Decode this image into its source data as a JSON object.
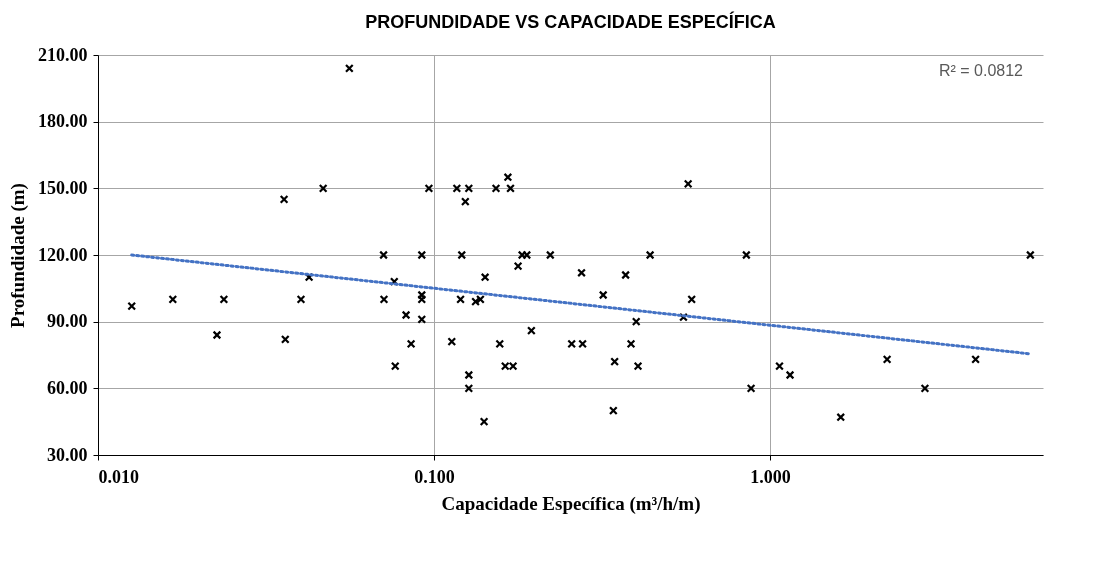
{
  "chart_data": {
    "type": "scatter",
    "title": "PROFUNDIDADE VS CAPACIDADE ESPECÍFICA",
    "xlabel": "Capacidade Específica (m³/h/m)",
    "ylabel": "Profundidade (m)",
    "log": "x",
    "xlim": [
      0.01,
      6.5
    ],
    "xticks": [
      {
        "value": 0.01,
        "label": "0.010"
      },
      {
        "value": 0.1,
        "label": "0.100"
      },
      {
        "value": 1,
        "label": "1.000"
      }
    ],
    "ylim": [
      30,
      210
    ],
    "yticks": [
      {
        "value": 30,
        "label": "30.00"
      },
      {
        "value": 60,
        "label": "60.00"
      },
      {
        "value": 90,
        "label": "90.00"
      },
      {
        "value": 120,
        "label": "120.00"
      },
      {
        "value": 150,
        "label": "150.00"
      },
      {
        "value": 180,
        "label": "180.00"
      },
      {
        "value": 210,
        "label": "210.00"
      }
    ],
    "grid": true,
    "marker": "cross",
    "annotations": [
      "R² = 0.0812"
    ],
    "series": [
      {
        "color": "#000000",
        "x": [
          0.0126,
          0.0167,
          0.0226,
          0.0237,
          0.0358,
          0.0361,
          0.0402,
          0.0425,
          0.0468,
          0.056,
          0.0708,
          0.071,
          0.0762,
          0.0767,
          0.0826,
          0.0855,
          0.092,
          0.092,
          0.092,
          0.092,
          0.0966,
          0.113,
          0.117,
          0.121,
          0.12,
          0.127,
          0.124,
          0.127,
          0.127,
          0.133,
          0.1375,
          0.142,
          0.141,
          0.153,
          0.157,
          0.166,
          0.169,
          0.163,
          0.172,
          0.178,
          0.183,
          0.189,
          0.195,
          0.222,
          0.257,
          0.277,
          0.275,
          0.319,
          0.345,
          0.342,
          0.372,
          0.386,
          0.4,
          0.405,
          0.44,
          0.553,
          0.571,
          0.585,
          0.851,
          0.879,
          1.068,
          1.148,
          1.625,
          2.233,
          2.894,
          4.095,
          5.96
        ],
        "values": [
          97,
          100,
          84,
          100,
          145,
          82,
          100,
          110,
          150,
          204,
          120,
          100,
          108,
          70,
          93,
          80,
          120,
          102,
          100,
          91,
          150,
          81,
          150,
          120,
          100,
          150,
          144,
          66,
          60,
          99,
          100,
          110,
          45,
          150,
          80,
          155,
          150,
          70,
          70,
          115,
          120,
          120,
          86,
          120,
          80,
          80,
          112,
          102,
          72,
          50,
          111,
          80,
          90,
          70,
          120,
          92,
          152,
          100,
          120,
          60,
          70,
          66,
          47,
          73,
          60,
          73,
          120
        ]
      },
      {
        "type": "line",
        "color": "#4472c4",
        "line_style": "dotted",
        "marker": "none",
        "x": [
          0.0126,
          5.96
        ],
        "values": [
          120,
          75.5
        ]
      }
    ]
  }
}
